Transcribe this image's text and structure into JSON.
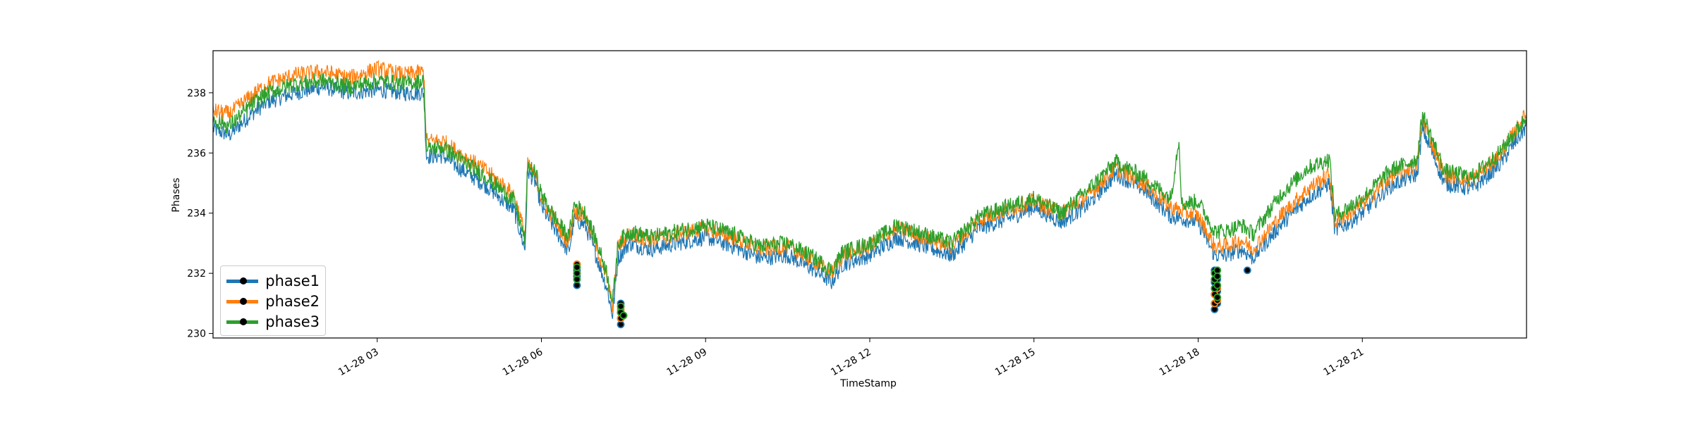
{
  "chart_data": {
    "type": "line",
    "xlabel": "TimeStamp",
    "ylabel": "Phases",
    "x_tick_labels": [
      "11-28 03",
      "11-28 06",
      "11-28 09",
      "11-28 12",
      "11-28 15",
      "11-28 18",
      "11-28 21"
    ],
    "x_ticks_hours": [
      3,
      6,
      9,
      12,
      15,
      18,
      21
    ],
    "xlim_hours": [
      0.0,
      24.0
    ],
    "y_ticks": [
      230,
      232,
      234,
      236,
      238
    ],
    "ylim": [
      229.85,
      239.4
    ],
    "grid": false,
    "legend_position": "lower-left",
    "legend_has_markers": true,
    "marker_style": "black-filled-circles",
    "series": [
      {
        "name": "phase1",
        "color": "#1f77b4",
        "hours": [
          0.0,
          0.3,
          0.7,
          1.0,
          1.5,
          2.0,
          2.5,
          3.0,
          3.5,
          3.85,
          3.9,
          4.2,
          4.5,
          5.0,
          5.5,
          5.7,
          5.75,
          5.9,
          6.0,
          6.3,
          6.5,
          6.6,
          6.8,
          7.0,
          7.2,
          7.3,
          7.4,
          7.6,
          8.0,
          8.5,
          9.0,
          9.5,
          10.0,
          10.5,
          11.0,
          11.3,
          11.5,
          12.0,
          12.5,
          13.0,
          13.5,
          14.0,
          14.5,
          15.0,
          15.5,
          16.0,
          16.5,
          17.0,
          17.5,
          18.0,
          18.3,
          18.5,
          18.8,
          19.0,
          19.5,
          20.0,
          20.4,
          20.5,
          21.0,
          21.5,
          22.0,
          22.1,
          22.5,
          23.0,
          23.5,
          24.0
        ],
        "values": [
          236.8,
          236.6,
          237.3,
          237.7,
          238.0,
          238.2,
          238.0,
          238.1,
          238.0,
          238.0,
          235.9,
          235.9,
          235.5,
          234.9,
          234.1,
          232.8,
          235.4,
          235.0,
          234.2,
          233.3,
          232.7,
          233.8,
          233.6,
          232.6,
          231.5,
          230.6,
          232.5,
          233.0,
          232.8,
          233.0,
          233.2,
          232.9,
          232.5,
          232.6,
          232.1,
          231.7,
          232.3,
          232.6,
          233.2,
          232.9,
          232.6,
          233.5,
          233.8,
          234.2,
          233.7,
          234.3,
          235.3,
          234.8,
          233.9,
          233.7,
          232.6,
          232.6,
          232.8,
          232.5,
          233.6,
          234.5,
          235.0,
          233.4,
          234.0,
          234.9,
          235.3,
          236.8,
          235.0,
          234.8,
          235.6,
          236.9
        ],
        "anomaly_hours": [
          6.65,
          6.65,
          6.65,
          6.65,
          7.45,
          7.45,
          7.45,
          7.45,
          7.5,
          18.3,
          18.3,
          18.3,
          18.3,
          18.3,
          18.35,
          18.35,
          18.35,
          18.35,
          18.9
        ],
        "anomaly_values": [
          231.6,
          231.9,
          232.1,
          232.3,
          230.3,
          230.5,
          230.7,
          231.0,
          230.6,
          230.8,
          231.0,
          231.3,
          231.7,
          232.1,
          231.4,
          231.8,
          232.1,
          231.0,
          232.1
        ]
      },
      {
        "name": "phase2",
        "color": "#ff7f0e",
        "hours": [
          0.0,
          0.3,
          0.7,
          1.0,
          1.5,
          2.0,
          2.5,
          3.0,
          3.5,
          3.85,
          3.9,
          4.2,
          4.5,
          5.0,
          5.5,
          5.7,
          5.75,
          5.9,
          6.0,
          6.3,
          6.5,
          6.6,
          6.8,
          7.0,
          7.2,
          7.3,
          7.4,
          7.6,
          8.0,
          8.5,
          9.0,
          9.5,
          10.0,
          10.5,
          11.0,
          11.3,
          11.5,
          12.0,
          12.5,
          13.0,
          13.5,
          14.0,
          14.5,
          15.0,
          15.5,
          16.0,
          16.5,
          17.0,
          17.5,
          18.0,
          18.3,
          18.5,
          18.8,
          19.0,
          19.5,
          20.0,
          20.4,
          20.5,
          21.0,
          21.5,
          22.0,
          22.1,
          22.5,
          23.0,
          23.5,
          24.0
        ],
        "values": [
          237.4,
          237.3,
          237.9,
          238.3,
          238.6,
          238.7,
          238.5,
          238.8,
          238.6,
          238.7,
          236.4,
          236.4,
          236.0,
          235.4,
          234.6,
          233.3,
          235.6,
          235.2,
          234.5,
          233.6,
          233.0,
          234.1,
          233.9,
          232.9,
          231.8,
          230.9,
          232.9,
          233.3,
          233.1,
          233.3,
          233.5,
          233.2,
          232.8,
          232.9,
          232.4,
          232.0,
          232.6,
          232.9,
          233.5,
          233.2,
          232.9,
          233.8,
          234.1,
          234.4,
          234.0,
          234.6,
          235.5,
          235.0,
          234.2,
          233.9,
          232.9,
          232.9,
          233.1,
          232.8,
          233.9,
          234.8,
          235.3,
          233.7,
          234.3,
          235.2,
          235.6,
          237.1,
          235.3,
          235.1,
          235.9,
          237.3
        ],
        "anomaly_hours": [
          6.65,
          6.65,
          7.45,
          7.45,
          7.5,
          18.3,
          18.3,
          18.35,
          18.35
        ],
        "anomaly_values": [
          232.0,
          232.3,
          230.5,
          230.8,
          230.6,
          231.0,
          231.3,
          231.1,
          231.5
        ]
      },
      {
        "name": "phase3",
        "color": "#2ca02c",
        "hours": [
          0.0,
          0.3,
          0.7,
          1.0,
          1.5,
          2.0,
          2.5,
          3.0,
          3.5,
          3.85,
          3.9,
          4.2,
          4.5,
          5.0,
          5.5,
          5.7,
          5.75,
          5.9,
          6.0,
          6.3,
          6.5,
          6.6,
          6.8,
          7.0,
          7.2,
          7.3,
          7.4,
          7.6,
          8.0,
          8.5,
          9.0,
          9.5,
          10.0,
          10.5,
          11.0,
          11.3,
          11.5,
          12.0,
          12.5,
          13.0,
          13.5,
          14.0,
          14.5,
          15.0,
          15.5,
          16.0,
          16.5,
          17.0,
          17.5,
          17.65,
          17.7,
          18.0,
          18.3,
          18.5,
          18.8,
          19.0,
          19.5,
          20.0,
          20.4,
          20.5,
          21.0,
          21.5,
          22.0,
          22.1,
          22.5,
          23.0,
          23.5,
          24.0
        ],
        "values": [
          237.1,
          236.9,
          237.6,
          238.0,
          238.3,
          238.4,
          238.2,
          238.4,
          238.3,
          238.4,
          236.1,
          236.2,
          235.8,
          235.2,
          234.4,
          233.1,
          235.6,
          235.3,
          234.6,
          233.7,
          233.2,
          234.3,
          234.0,
          233.1,
          232.0,
          231.0,
          233.0,
          233.4,
          233.2,
          233.4,
          233.6,
          233.3,
          232.9,
          233.0,
          232.5,
          232.1,
          232.7,
          233.0,
          233.6,
          233.3,
          233.0,
          233.9,
          234.2,
          234.5,
          234.0,
          234.8,
          235.7,
          235.2,
          234.5,
          236.5,
          234.3,
          234.4,
          233.4,
          233.4,
          233.6,
          233.3,
          234.6,
          235.5,
          235.8,
          233.9,
          234.5,
          235.4,
          235.8,
          237.3,
          235.4,
          235.2,
          236.0,
          237.2
        ],
        "anomaly_hours": [
          6.65,
          6.65,
          6.65,
          7.45,
          7.45,
          7.5,
          18.3,
          18.3,
          18.3,
          18.35,
          18.35,
          18.35,
          18.35
        ],
        "anomaly_values": [
          231.8,
          232.0,
          232.2,
          230.7,
          230.9,
          230.6,
          232.0,
          231.8,
          231.5,
          232.1,
          231.9,
          231.6,
          231.2
        ]
      }
    ]
  }
}
